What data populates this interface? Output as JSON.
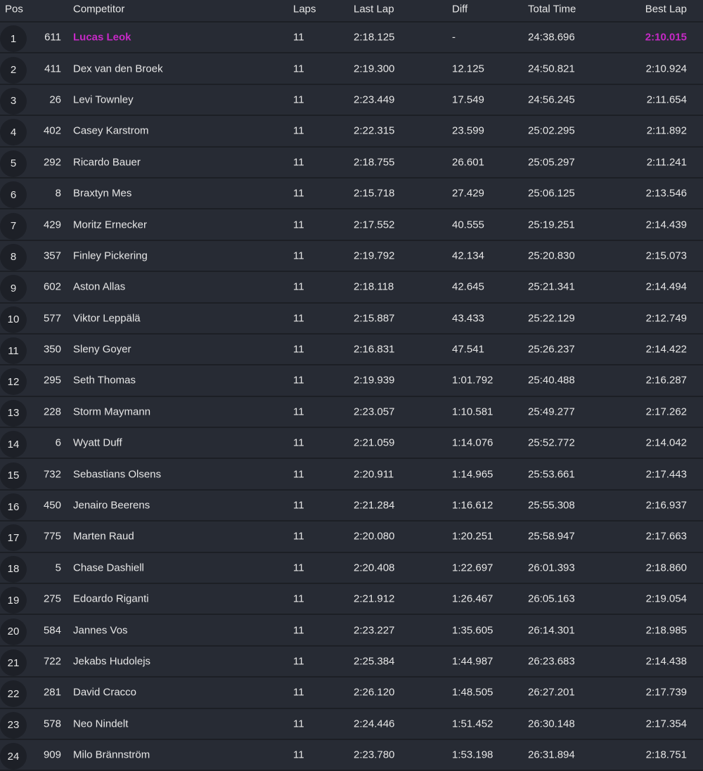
{
  "colors": {
    "background": "#272b34",
    "separator": "#1c1f25",
    "highlight": "#c629c6",
    "text": "#e6e6e6"
  },
  "headers": {
    "pos": "Pos",
    "competitor": "Competitor",
    "laps": "Laps",
    "last_lap": "Last Lap",
    "diff": "Diff",
    "total_time": "Total Time",
    "best_lap": "Best Lap"
  },
  "rows": [
    {
      "pos": "1",
      "num": "611",
      "name": "Lucas Leok",
      "laps": "11",
      "last": "2:18.125",
      "diff": "-",
      "total": "24:38.696",
      "best": "2:10.015",
      "highlight": true
    },
    {
      "pos": "2",
      "num": "411",
      "name": "Dex van den Broek",
      "laps": "11",
      "last": "2:19.300",
      "diff": "12.125",
      "total": "24:50.821",
      "best": "2:10.924"
    },
    {
      "pos": "3",
      "num": "26",
      "name": "Levi Townley",
      "laps": "11",
      "last": "2:23.449",
      "diff": "17.549",
      "total": "24:56.245",
      "best": "2:11.654"
    },
    {
      "pos": "4",
      "num": "402",
      "name": "Casey Karstrom",
      "laps": "11",
      "last": "2:22.315",
      "diff": "23.599",
      "total": "25:02.295",
      "best": "2:11.892"
    },
    {
      "pos": "5",
      "num": "292",
      "name": "Ricardo Bauer",
      "laps": "11",
      "last": "2:18.755",
      "diff": "26.601",
      "total": "25:05.297",
      "best": "2:11.241"
    },
    {
      "pos": "6",
      "num": "8",
      "name": "Braxtyn Mes",
      "laps": "11",
      "last": "2:15.718",
      "diff": "27.429",
      "total": "25:06.125",
      "best": "2:13.546"
    },
    {
      "pos": "7",
      "num": "429",
      "name": "Moritz Ernecker",
      "laps": "11",
      "last": "2:17.552",
      "diff": "40.555",
      "total": "25:19.251",
      "best": "2:14.439"
    },
    {
      "pos": "8",
      "num": "357",
      "name": "Finley Pickering",
      "laps": "11",
      "last": "2:19.792",
      "diff": "42.134",
      "total": "25:20.830",
      "best": "2:15.073"
    },
    {
      "pos": "9",
      "num": "602",
      "name": "Aston Allas",
      "laps": "11",
      "last": "2:18.118",
      "diff": "42.645",
      "total": "25:21.341",
      "best": "2:14.494"
    },
    {
      "pos": "10",
      "num": "577",
      "name": "Viktor Leppälä",
      "laps": "11",
      "last": "2:15.887",
      "diff": "43.433",
      "total": "25:22.129",
      "best": "2:12.749"
    },
    {
      "pos": "11",
      "num": "350",
      "name": "Sleny Goyer",
      "laps": "11",
      "last": "2:16.831",
      "diff": "47.541",
      "total": "25:26.237",
      "best": "2:14.422"
    },
    {
      "pos": "12",
      "num": "295",
      "name": "Seth Thomas",
      "laps": "11",
      "last": "2:19.939",
      "diff": "1:01.792",
      "total": "25:40.488",
      "best": "2:16.287"
    },
    {
      "pos": "13",
      "num": "228",
      "name": "Storm Maymann",
      "laps": "11",
      "last": "2:23.057",
      "diff": "1:10.581",
      "total": "25:49.277",
      "best": "2:17.262"
    },
    {
      "pos": "14",
      "num": "6",
      "name": "Wyatt Duff",
      "laps": "11",
      "last": "2:21.059",
      "diff": "1:14.076",
      "total": "25:52.772",
      "best": "2:14.042"
    },
    {
      "pos": "15",
      "num": "732",
      "name": "Sebastians Olsens",
      "laps": "11",
      "last": "2:20.911",
      "diff": "1:14.965",
      "total": "25:53.661",
      "best": "2:17.443"
    },
    {
      "pos": "16",
      "num": "450",
      "name": "Jenairo Beerens",
      "laps": "11",
      "last": "2:21.284",
      "diff": "1:16.612",
      "total": "25:55.308",
      "best": "2:16.937"
    },
    {
      "pos": "17",
      "num": "775",
      "name": "Marten Raud",
      "laps": "11",
      "last": "2:20.080",
      "diff": "1:20.251",
      "total": "25:58.947",
      "best": "2:17.663"
    },
    {
      "pos": "18",
      "num": "5",
      "name": "Chase Dashiell",
      "laps": "11",
      "last": "2:20.408",
      "diff": "1:22.697",
      "total": "26:01.393",
      "best": "2:18.860"
    },
    {
      "pos": "19",
      "num": "275",
      "name": "Edoardo Riganti",
      "laps": "11",
      "last": "2:21.912",
      "diff": "1:26.467",
      "total": "26:05.163",
      "best": "2:19.054"
    },
    {
      "pos": "20",
      "num": "584",
      "name": "Jannes Vos",
      "laps": "11",
      "last": "2:23.227",
      "diff": "1:35.605",
      "total": "26:14.301",
      "best": "2:18.985"
    },
    {
      "pos": "21",
      "num": "722",
      "name": "Jekabs Hudolejs",
      "laps": "11",
      "last": "2:25.384",
      "diff": "1:44.987",
      "total": "26:23.683",
      "best": "2:14.438"
    },
    {
      "pos": "22",
      "num": "281",
      "name": "David Cracco",
      "laps": "11",
      "last": "2:26.120",
      "diff": "1:48.505",
      "total": "26:27.201",
      "best": "2:17.739"
    },
    {
      "pos": "23",
      "num": "578",
      "name": "Neo Nindelt",
      "laps": "11",
      "last": "2:24.446",
      "diff": "1:51.452",
      "total": "26:30.148",
      "best": "2:17.354"
    },
    {
      "pos": "24",
      "num": "909",
      "name": "Milo Brännström",
      "laps": "11",
      "last": "2:23.780",
      "diff": "1:53.198",
      "total": "26:31.894",
      "best": "2:18.751"
    }
  ]
}
